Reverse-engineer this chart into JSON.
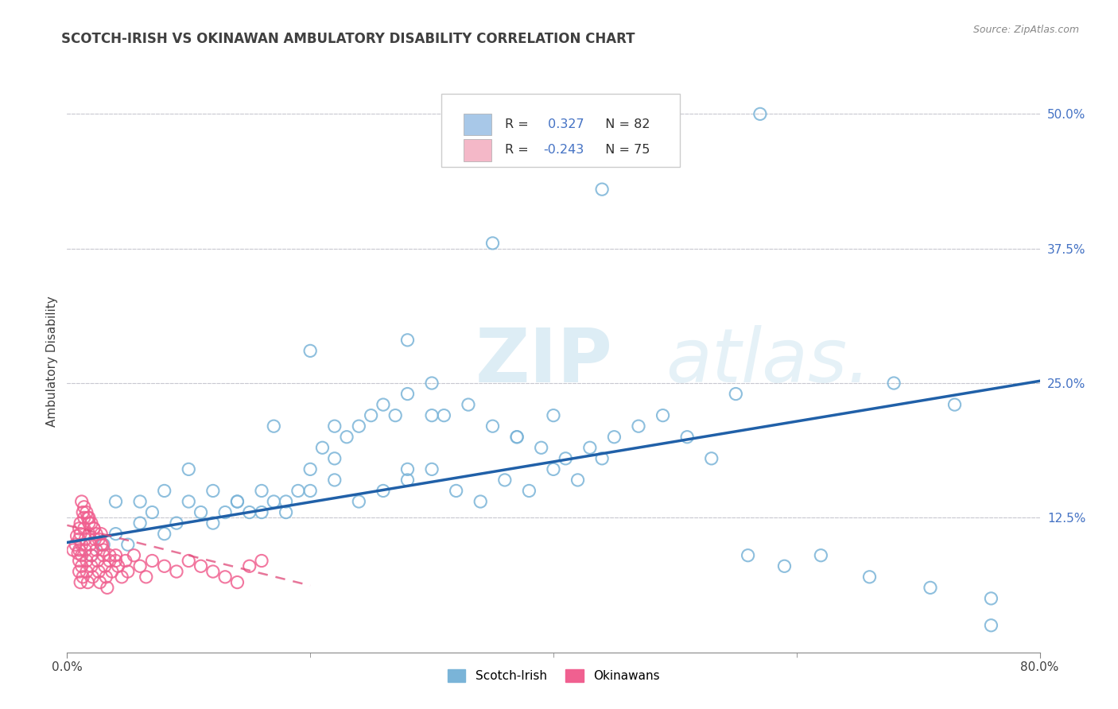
{
  "title": "SCOTCH-IRISH VS OKINAWAN AMBULATORY DISABILITY CORRELATION CHART",
  "source_text": "Source: ZipAtlas.com",
  "ylabel": "Ambulatory Disability",
  "xlim": [
    0.0,
    0.8
  ],
  "ylim": [
    0.0,
    0.54
  ],
  "ytick_labels": [
    "12.5%",
    "25.0%",
    "37.5%",
    "50.0%"
  ],
  "ytick_positions": [
    0.125,
    0.25,
    0.375,
    0.5
  ],
  "watermark_zip": "ZIP",
  "watermark_atlas": "atlas.",
  "legend_scotch_color": "#a8c8e8",
  "legend_okinawan_color": "#f4b8c8",
  "scotch_color": "#7ab4d8",
  "okinawan_color": "#f06090",
  "regression_scotch_color": "#2060a8",
  "regression_okinawan_color": "#e04878",
  "R_scotch": 0.327,
  "N_scotch": 82,
  "R_okinawan": -0.243,
  "N_okinawan": 75,
  "background_color": "#ffffff",
  "grid_color": "#c8c8d0",
  "title_color": "#404040",
  "ytick_color": "#4472c4",
  "regression_si_x0": 0.0,
  "regression_si_y0": 0.102,
  "regression_si_x1": 0.8,
  "regression_si_y1": 0.252,
  "regression_ok_x0": 0.0,
  "regression_ok_y0": 0.118,
  "regression_ok_x1": 0.2,
  "regression_ok_y1": 0.062
}
